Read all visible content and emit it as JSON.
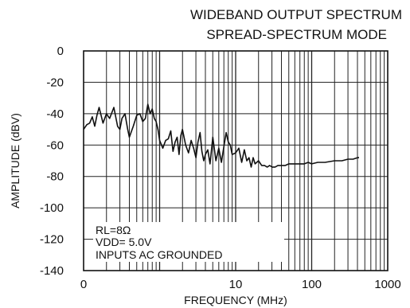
{
  "chart_data": {
    "type": "line",
    "title": "WIDEBAND OUTPUT SPECTRUM",
    "subtitle": "SPREAD-SPECTRUM MODE",
    "xlabel": "FREQUENCY (MHz)",
    "ylabel": "AMPLITUDE (dBV)",
    "x_scale": "log",
    "xlim": [
      0.1,
      1000
    ],
    "ylim": [
      -140,
      0
    ],
    "x_tick_labels": [
      "0",
      "10",
      "100",
      "1000"
    ],
    "y_tick_labels": [
      "0",
      "-20",
      "-40",
      "-60",
      "-80",
      "-100",
      "-120",
      "-140"
    ],
    "y_ticks": [
      0,
      -20,
      -40,
      -60,
      -80,
      -100,
      -120,
      -140
    ],
    "grid": true,
    "annotations": [
      "RL=8Ω",
      "VDD= 5.0V",
      "INPUTS AC GROUNDED"
    ],
    "series": [
      {
        "color": "#111111",
        "x": [
          0.1,
          0.11,
          0.12,
          0.13,
          0.14,
          0.15,
          0.16,
          0.18,
          0.2,
          0.22,
          0.25,
          0.28,
          0.3,
          0.32,
          0.35,
          0.38,
          0.4,
          0.45,
          0.5,
          0.55,
          0.6,
          0.65,
          0.7,
          0.75,
          0.8,
          0.85,
          0.9,
          0.95,
          1.0,
          1.1,
          1.2,
          1.3,
          1.4,
          1.5,
          1.6,
          1.7,
          1.8,
          1.9,
          2.0,
          2.2,
          2.4,
          2.6,
          2.8,
          3.0,
          3.2,
          3.4,
          3.6,
          3.8,
          4.0,
          4.3,
          4.6,
          5.0,
          5.5,
          6.0,
          6.5,
          7.0,
          7.5,
          8.0,
          8.5,
          9.0,
          10,
          11,
          12,
          13,
          14,
          15,
          16,
          17,
          18,
          20,
          22,
          24,
          26,
          28,
          30,
          33,
          36,
          40,
          45,
          50,
          60,
          70,
          80,
          90,
          100,
          120,
          150,
          200,
          250,
          300,
          350,
          400,
          420
        ],
        "y": [
          -50,
          -47,
          -46,
          -42,
          -48,
          -41,
          -36,
          -46,
          -40,
          -43,
          -36,
          -48,
          -50,
          -43,
          -40,
          -50,
          -55,
          -48,
          -41,
          -40,
          -45,
          -43,
          -34,
          -40,
          -37,
          -43,
          -45,
          -50,
          -57,
          -62,
          -57,
          -56,
          -51,
          -64,
          -58,
          -55,
          -66,
          -54,
          -50,
          -60,
          -65,
          -57,
          -62,
          -68,
          -58,
          -52,
          -64,
          -70,
          -66,
          -63,
          -72,
          -55,
          -70,
          -62,
          -71,
          -61,
          -52,
          -58,
          -60,
          -66,
          -65,
          -62,
          -71,
          -63,
          -70,
          -68,
          -74,
          -68,
          -72,
          -70,
          -73,
          -73,
          -74,
          -73,
          -74,
          -74,
          -73,
          -73,
          -73,
          -72,
          -72,
          -72,
          -72,
          -71,
          -72,
          -71,
          -71,
          -70,
          -70,
          -69,
          -69,
          -68,
          -68
        ]
      }
    ]
  }
}
